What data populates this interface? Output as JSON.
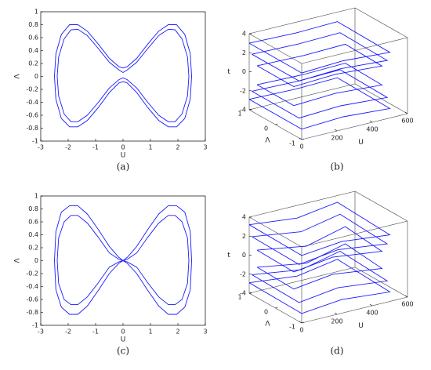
{
  "chart_data": [
    {
      "type": "line",
      "caption": "(a)",
      "x_label": "U",
      "y_label": "Λ",
      "xlim": [
        -3,
        3
      ],
      "ylim": [
        -1,
        1
      ],
      "xticks": [
        -3,
        -2,
        -1,
        0,
        1,
        2,
        3
      ],
      "yticks": [
        -1,
        -0.8,
        -0.6,
        -0.4,
        -0.2,
        0,
        0.2,
        0.4,
        0.6,
        0.8,
        1
      ],
      "series": [
        {
          "color": "#1a1aff",
          "x": [
            -2.5,
            -2.45,
            -2.25,
            -1.95,
            -1.65,
            -1.3,
            -0.9,
            -0.5,
            -0.15,
            0,
            0.15,
            0.5,
            0.9,
            1.3,
            1.65,
            1.95,
            2.25,
            2.45,
            2.5,
            2.45,
            2.25,
            1.95,
            1.65,
            1.3,
            0.9,
            0.5,
            0.15,
            0,
            -0.15,
            -0.5,
            -0.9,
            -1.3,
            -1.65,
            -1.95,
            -2.25,
            -2.45,
            -2.5
          ],
          "values": [
            0,
            0.35,
            0.65,
            0.8,
            0.8,
            0.7,
            0.5,
            0.28,
            0.15,
            0.13,
            0.15,
            0.28,
            0.5,
            0.7,
            0.8,
            0.8,
            0.65,
            0.35,
            0,
            -0.35,
            -0.65,
            -0.78,
            -0.78,
            -0.68,
            -0.48,
            -0.25,
            -0.1,
            -0.08,
            -0.1,
            -0.25,
            -0.48,
            -0.68,
            -0.78,
            -0.78,
            -0.65,
            -0.35,
            0
          ]
        },
        {
          "color": "#1a1aff",
          "x": [
            -2.4,
            -2.35,
            -2.15,
            -1.9,
            -1.65,
            -1.3,
            -0.9,
            -0.5,
            -0.15,
            0,
            0.15,
            0.5,
            0.9,
            1.3,
            1.65,
            1.9,
            2.15,
            2.35,
            2.4,
            2.35,
            2.15,
            1.9,
            1.65,
            1.3,
            0.9,
            0.5,
            0.15,
            0,
            -0.15,
            -0.5,
            -0.9,
            -1.3,
            -1.65,
            -1.9,
            -2.15,
            -2.35,
            -2.4
          ],
          "values": [
            0,
            0.3,
            0.58,
            0.72,
            0.73,
            0.63,
            0.43,
            0.22,
            0.1,
            0.06,
            0.1,
            0.22,
            0.43,
            0.63,
            0.73,
            0.72,
            0.58,
            0.3,
            0,
            -0.3,
            -0.58,
            -0.7,
            -0.7,
            -0.6,
            -0.4,
            -0.18,
            -0.05,
            -0.02,
            -0.05,
            -0.18,
            -0.4,
            -0.6,
            -0.7,
            -0.7,
            -0.58,
            -0.3,
            0
          ]
        }
      ]
    },
    {
      "type": "line3d",
      "caption": "(b)",
      "x_label": "U",
      "y_label": "Λ",
      "z_label": "t",
      "xlim": [
        0,
        600
      ],
      "ylim": [
        -1,
        1
      ],
      "zlim": [
        -4,
        4
      ],
      "xticks": [
        0,
        200,
        400,
        600
      ],
      "yticks": [
        -1,
        0,
        1
      ],
      "zticks": [
        -4,
        -2,
        0,
        2,
        4
      ],
      "series": [
        {
          "color": "#1a1aff",
          "x": [
            0,
            250,
            500,
            500,
            250,
            0,
            0
          ],
          "y": [
            1,
            0.9,
            1,
            -1,
            -0.9,
            -1,
            1
          ],
          "z": [
            3,
            3.1,
            3,
            2.9,
            3,
            3,
            3
          ]
        },
        {
          "color": "#1a1aff",
          "x": [
            0,
            250,
            500,
            500,
            250,
            0,
            0
          ],
          "y": [
            0.9,
            0.8,
            0.9,
            -0.9,
            -0.8,
            -0.9,
            0.9
          ],
          "z": [
            2,
            2.1,
            2,
            1.9,
            2,
            2,
            2
          ]
        },
        {
          "color": "#1a1aff",
          "x": [
            0,
            250,
            500,
            500,
            250,
            0,
            0
          ],
          "y": [
            0.7,
            0.6,
            0.7,
            -0.7,
            -0.6,
            -0.7,
            0.7
          ],
          "z": [
            1.1,
            1.2,
            1.1,
            1,
            1.1,
            1.1,
            1.1
          ]
        },
        {
          "color": "#1a1aff",
          "x": [
            0,
            250,
            500,
            500,
            250,
            0,
            0
          ],
          "y": [
            0.7,
            0.6,
            0.7,
            -0.7,
            -0.6,
            -0.7,
            0.7
          ],
          "z": [
            -0.9,
            -0.8,
            -0.9,
            -1,
            -0.9,
            -0.9,
            -0.9
          ]
        },
        {
          "color": "#1a1aff",
          "x": [
            0,
            250,
            500,
            500,
            250,
            0,
            0
          ],
          "y": [
            0.9,
            0.8,
            0.9,
            -0.9,
            -0.8,
            -0.9,
            0.9
          ],
          "z": [
            -1.9,
            -1.8,
            -1.9,
            -2,
            -1.9,
            -1.9,
            -1.9
          ]
        },
        {
          "color": "#1a1aff",
          "x": [
            0,
            250,
            500,
            500,
            250,
            0,
            0
          ],
          "y": [
            1,
            0.9,
            1,
            -1,
            -0.9,
            -1,
            1
          ],
          "z": [
            -2.9,
            -2.8,
            -2.9,
            -3,
            -2.9,
            -2.9,
            -2.9
          ]
        }
      ]
    },
    {
      "type": "line",
      "caption": "(c)",
      "x_label": "U",
      "y_label": "Λ",
      "xlim": [
        -3,
        3
      ],
      "ylim": [
        -1,
        1
      ],
      "xticks": [
        -3,
        -2,
        -1,
        0,
        1,
        2,
        3
      ],
      "yticks": [
        -1,
        -0.8,
        -0.6,
        -0.4,
        -0.2,
        0,
        0.2,
        0.4,
        0.6,
        0.8,
        1
      ],
      "series": [
        {
          "color": "#1a1aff",
          "x": [
            -2.5,
            -2.45,
            -2.25,
            -1.95,
            -1.65,
            -1.3,
            -0.9,
            -0.5,
            -0.15,
            0,
            0.15,
            0.5,
            0.9,
            1.3,
            1.65,
            1.95,
            2.25,
            2.45,
            2.5,
            2.45,
            2.25,
            1.95,
            1.65,
            1.3,
            0.9,
            0.5,
            0.15,
            0,
            -0.15,
            -0.5,
            -0.9,
            -1.3,
            -1.65,
            -1.95,
            -2.25,
            -2.45,
            -2.5
          ],
          "values": [
            0,
            0.45,
            0.75,
            0.85,
            0.85,
            0.72,
            0.48,
            0.22,
            0.05,
            0,
            0.05,
            0.22,
            0.48,
            0.72,
            0.85,
            0.85,
            0.75,
            0.45,
            0,
            -0.45,
            -0.72,
            -0.83,
            -0.83,
            -0.7,
            -0.46,
            -0.2,
            -0.04,
            0,
            -0.04,
            -0.2,
            -0.46,
            -0.7,
            -0.83,
            -0.83,
            -0.72,
            -0.45,
            0
          ]
        },
        {
          "color": "#1a1aff",
          "x": [
            -2.4,
            -2.35,
            -2.15,
            -1.9,
            -1.65,
            -1.3,
            -0.9,
            -0.5,
            -0.15,
            0,
            0.15,
            0.5,
            0.9,
            1.3,
            1.65,
            1.9,
            2.15,
            2.35,
            2.4,
            2.35,
            2.15,
            1.9,
            1.65,
            1.3,
            0.9,
            0.5,
            0.15,
            0,
            -0.15,
            -0.5,
            -0.9,
            -1.3,
            -1.65,
            -1.9,
            -2.15,
            -2.35,
            -2.4
          ],
          "values": [
            0,
            0.35,
            0.6,
            0.7,
            0.7,
            0.58,
            0.36,
            0.12,
            0.02,
            0,
            0.02,
            0.12,
            0.36,
            0.58,
            0.7,
            0.7,
            0.6,
            0.35,
            0,
            -0.35,
            -0.6,
            -0.68,
            -0.68,
            -0.56,
            -0.34,
            -0.1,
            -0.02,
            0,
            -0.02,
            -0.1,
            -0.34,
            -0.56,
            -0.68,
            -0.68,
            -0.6,
            -0.35,
            0
          ]
        }
      ]
    },
    {
      "type": "line3d",
      "caption": "(d)",
      "x_label": "U",
      "y_label": "Λ",
      "z_label": "t",
      "xlim": [
        0,
        600
      ],
      "ylim": [
        -1,
        1
      ],
      "zlim": [
        -4,
        4
      ],
      "xticks": [
        0,
        200,
        400,
        600
      ],
      "yticks": [
        -1,
        0,
        1
      ],
      "zticks": [
        -4,
        -2,
        0,
        2,
        4
      ],
      "series": [
        {
          "color": "#1a1aff",
          "x": [
            0,
            250,
            500,
            500,
            250,
            0,
            0
          ],
          "y": [
            1,
            0.85,
            1,
            -1,
            -0.85,
            -1,
            1
          ],
          "z": [
            3.2,
            3,
            3.3,
            3,
            3.2,
            3.1,
            3.2
          ]
        },
        {
          "color": "#1a1aff",
          "x": [
            0,
            250,
            500,
            500,
            250,
            0,
            0
          ],
          "y": [
            0.9,
            0.7,
            0.9,
            -0.9,
            -0.7,
            -0.9,
            0.9
          ],
          "z": [
            2.1,
            1.8,
            2.2,
            1.9,
            2.1,
            2,
            2.1
          ]
        },
        {
          "color": "#1a1aff",
          "x": [
            0,
            250,
            500,
            500,
            250,
            0,
            0
          ],
          "y": [
            0.7,
            0.5,
            0.7,
            -0.7,
            -0.5,
            -0.7,
            0.7
          ],
          "z": [
            1,
            0.6,
            1.2,
            0.8,
            1,
            0.9,
            1
          ]
        },
        {
          "color": "#1a1aff",
          "x": [
            0,
            250,
            500,
            500,
            250,
            0,
            0
          ],
          "y": [
            0.7,
            0.5,
            0.7,
            -0.7,
            -0.5,
            -0.7,
            0.7
          ],
          "z": [
            -0.8,
            -1.2,
            -0.6,
            -1,
            -0.8,
            -0.9,
            -0.8
          ]
        },
        {
          "color": "#1a1aff",
          "x": [
            0,
            250,
            500,
            500,
            250,
            0,
            0
          ],
          "y": [
            0.9,
            0.7,
            0.9,
            -0.9,
            -0.7,
            -0.9,
            0.9
          ],
          "z": [
            -1.9,
            -2.2,
            -1.7,
            -2,
            -1.9,
            -2,
            -1.9
          ]
        },
        {
          "color": "#1a1aff",
          "x": [
            0,
            250,
            500,
            500,
            250,
            0,
            0
          ],
          "y": [
            1,
            0.85,
            1,
            -1,
            -0.85,
            -1,
            1
          ],
          "z": [
            -2.9,
            -3.1,
            -2.7,
            -3,
            -2.9,
            -3,
            -2.9
          ]
        }
      ]
    }
  ]
}
